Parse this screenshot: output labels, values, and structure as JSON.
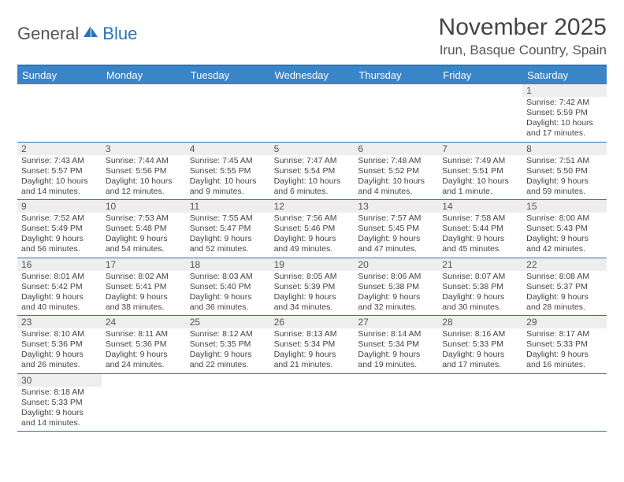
{
  "logo": {
    "part1": "General",
    "part2": "Blue"
  },
  "title": "November 2025",
  "location": "Irun, Basque Country, Spain",
  "colors": {
    "header_bg": "#3a84c8",
    "border": "#2a74b8",
    "daynum_bg": "#eeeeee",
    "text": "#444444",
    "logo_gray": "#555555",
    "logo_blue": "#2a74b8"
  },
  "day_names": [
    "Sunday",
    "Monday",
    "Tuesday",
    "Wednesday",
    "Thursday",
    "Friday",
    "Saturday"
  ],
  "weeks": [
    [
      null,
      null,
      null,
      null,
      null,
      null,
      {
        "n": "1",
        "sr": "Sunrise: 7:42 AM",
        "ss": "Sunset: 5:59 PM",
        "d1": "Daylight: 10 hours",
        "d2": "and 17 minutes."
      }
    ],
    [
      {
        "n": "2",
        "sr": "Sunrise: 7:43 AM",
        "ss": "Sunset: 5:57 PM",
        "d1": "Daylight: 10 hours",
        "d2": "and 14 minutes."
      },
      {
        "n": "3",
        "sr": "Sunrise: 7:44 AM",
        "ss": "Sunset: 5:56 PM",
        "d1": "Daylight: 10 hours",
        "d2": "and 12 minutes."
      },
      {
        "n": "4",
        "sr": "Sunrise: 7:45 AM",
        "ss": "Sunset: 5:55 PM",
        "d1": "Daylight: 10 hours",
        "d2": "and 9 minutes."
      },
      {
        "n": "5",
        "sr": "Sunrise: 7:47 AM",
        "ss": "Sunset: 5:54 PM",
        "d1": "Daylight: 10 hours",
        "d2": "and 6 minutes."
      },
      {
        "n": "6",
        "sr": "Sunrise: 7:48 AM",
        "ss": "Sunset: 5:52 PM",
        "d1": "Daylight: 10 hours",
        "d2": "and 4 minutes."
      },
      {
        "n": "7",
        "sr": "Sunrise: 7:49 AM",
        "ss": "Sunset: 5:51 PM",
        "d1": "Daylight: 10 hours",
        "d2": "and 1 minute."
      },
      {
        "n": "8",
        "sr": "Sunrise: 7:51 AM",
        "ss": "Sunset: 5:50 PM",
        "d1": "Daylight: 9 hours",
        "d2": "and 59 minutes."
      }
    ],
    [
      {
        "n": "9",
        "sr": "Sunrise: 7:52 AM",
        "ss": "Sunset: 5:49 PM",
        "d1": "Daylight: 9 hours",
        "d2": "and 56 minutes."
      },
      {
        "n": "10",
        "sr": "Sunrise: 7:53 AM",
        "ss": "Sunset: 5:48 PM",
        "d1": "Daylight: 9 hours",
        "d2": "and 54 minutes."
      },
      {
        "n": "11",
        "sr": "Sunrise: 7:55 AM",
        "ss": "Sunset: 5:47 PM",
        "d1": "Daylight: 9 hours",
        "d2": "and 52 minutes."
      },
      {
        "n": "12",
        "sr": "Sunrise: 7:56 AM",
        "ss": "Sunset: 5:46 PM",
        "d1": "Daylight: 9 hours",
        "d2": "and 49 minutes."
      },
      {
        "n": "13",
        "sr": "Sunrise: 7:57 AM",
        "ss": "Sunset: 5:45 PM",
        "d1": "Daylight: 9 hours",
        "d2": "and 47 minutes."
      },
      {
        "n": "14",
        "sr": "Sunrise: 7:58 AM",
        "ss": "Sunset: 5:44 PM",
        "d1": "Daylight: 9 hours",
        "d2": "and 45 minutes."
      },
      {
        "n": "15",
        "sr": "Sunrise: 8:00 AM",
        "ss": "Sunset: 5:43 PM",
        "d1": "Daylight: 9 hours",
        "d2": "and 42 minutes."
      }
    ],
    [
      {
        "n": "16",
        "sr": "Sunrise: 8:01 AM",
        "ss": "Sunset: 5:42 PM",
        "d1": "Daylight: 9 hours",
        "d2": "and 40 minutes."
      },
      {
        "n": "17",
        "sr": "Sunrise: 8:02 AM",
        "ss": "Sunset: 5:41 PM",
        "d1": "Daylight: 9 hours",
        "d2": "and 38 minutes."
      },
      {
        "n": "18",
        "sr": "Sunrise: 8:03 AM",
        "ss": "Sunset: 5:40 PM",
        "d1": "Daylight: 9 hours",
        "d2": "and 36 minutes."
      },
      {
        "n": "19",
        "sr": "Sunrise: 8:05 AM",
        "ss": "Sunset: 5:39 PM",
        "d1": "Daylight: 9 hours",
        "d2": "and 34 minutes."
      },
      {
        "n": "20",
        "sr": "Sunrise: 8:06 AM",
        "ss": "Sunset: 5:38 PM",
        "d1": "Daylight: 9 hours",
        "d2": "and 32 minutes."
      },
      {
        "n": "21",
        "sr": "Sunrise: 8:07 AM",
        "ss": "Sunset: 5:38 PM",
        "d1": "Daylight: 9 hours",
        "d2": "and 30 minutes."
      },
      {
        "n": "22",
        "sr": "Sunrise: 8:08 AM",
        "ss": "Sunset: 5:37 PM",
        "d1": "Daylight: 9 hours",
        "d2": "and 28 minutes."
      }
    ],
    [
      {
        "n": "23",
        "sr": "Sunrise: 8:10 AM",
        "ss": "Sunset: 5:36 PM",
        "d1": "Daylight: 9 hours",
        "d2": "and 26 minutes."
      },
      {
        "n": "24",
        "sr": "Sunrise: 8:11 AM",
        "ss": "Sunset: 5:36 PM",
        "d1": "Daylight: 9 hours",
        "d2": "and 24 minutes."
      },
      {
        "n": "25",
        "sr": "Sunrise: 8:12 AM",
        "ss": "Sunset: 5:35 PM",
        "d1": "Daylight: 9 hours",
        "d2": "and 22 minutes."
      },
      {
        "n": "26",
        "sr": "Sunrise: 8:13 AM",
        "ss": "Sunset: 5:34 PM",
        "d1": "Daylight: 9 hours",
        "d2": "and 21 minutes."
      },
      {
        "n": "27",
        "sr": "Sunrise: 8:14 AM",
        "ss": "Sunset: 5:34 PM",
        "d1": "Daylight: 9 hours",
        "d2": "and 19 minutes."
      },
      {
        "n": "28",
        "sr": "Sunrise: 8:16 AM",
        "ss": "Sunset: 5:33 PM",
        "d1": "Daylight: 9 hours",
        "d2": "and 17 minutes."
      },
      {
        "n": "29",
        "sr": "Sunrise: 8:17 AM",
        "ss": "Sunset: 5:33 PM",
        "d1": "Daylight: 9 hours",
        "d2": "and 16 minutes."
      }
    ],
    [
      {
        "n": "30",
        "sr": "Sunrise: 8:18 AM",
        "ss": "Sunset: 5:33 PM",
        "d1": "Daylight: 9 hours",
        "d2": "and 14 minutes."
      },
      null,
      null,
      null,
      null,
      null,
      null
    ]
  ]
}
